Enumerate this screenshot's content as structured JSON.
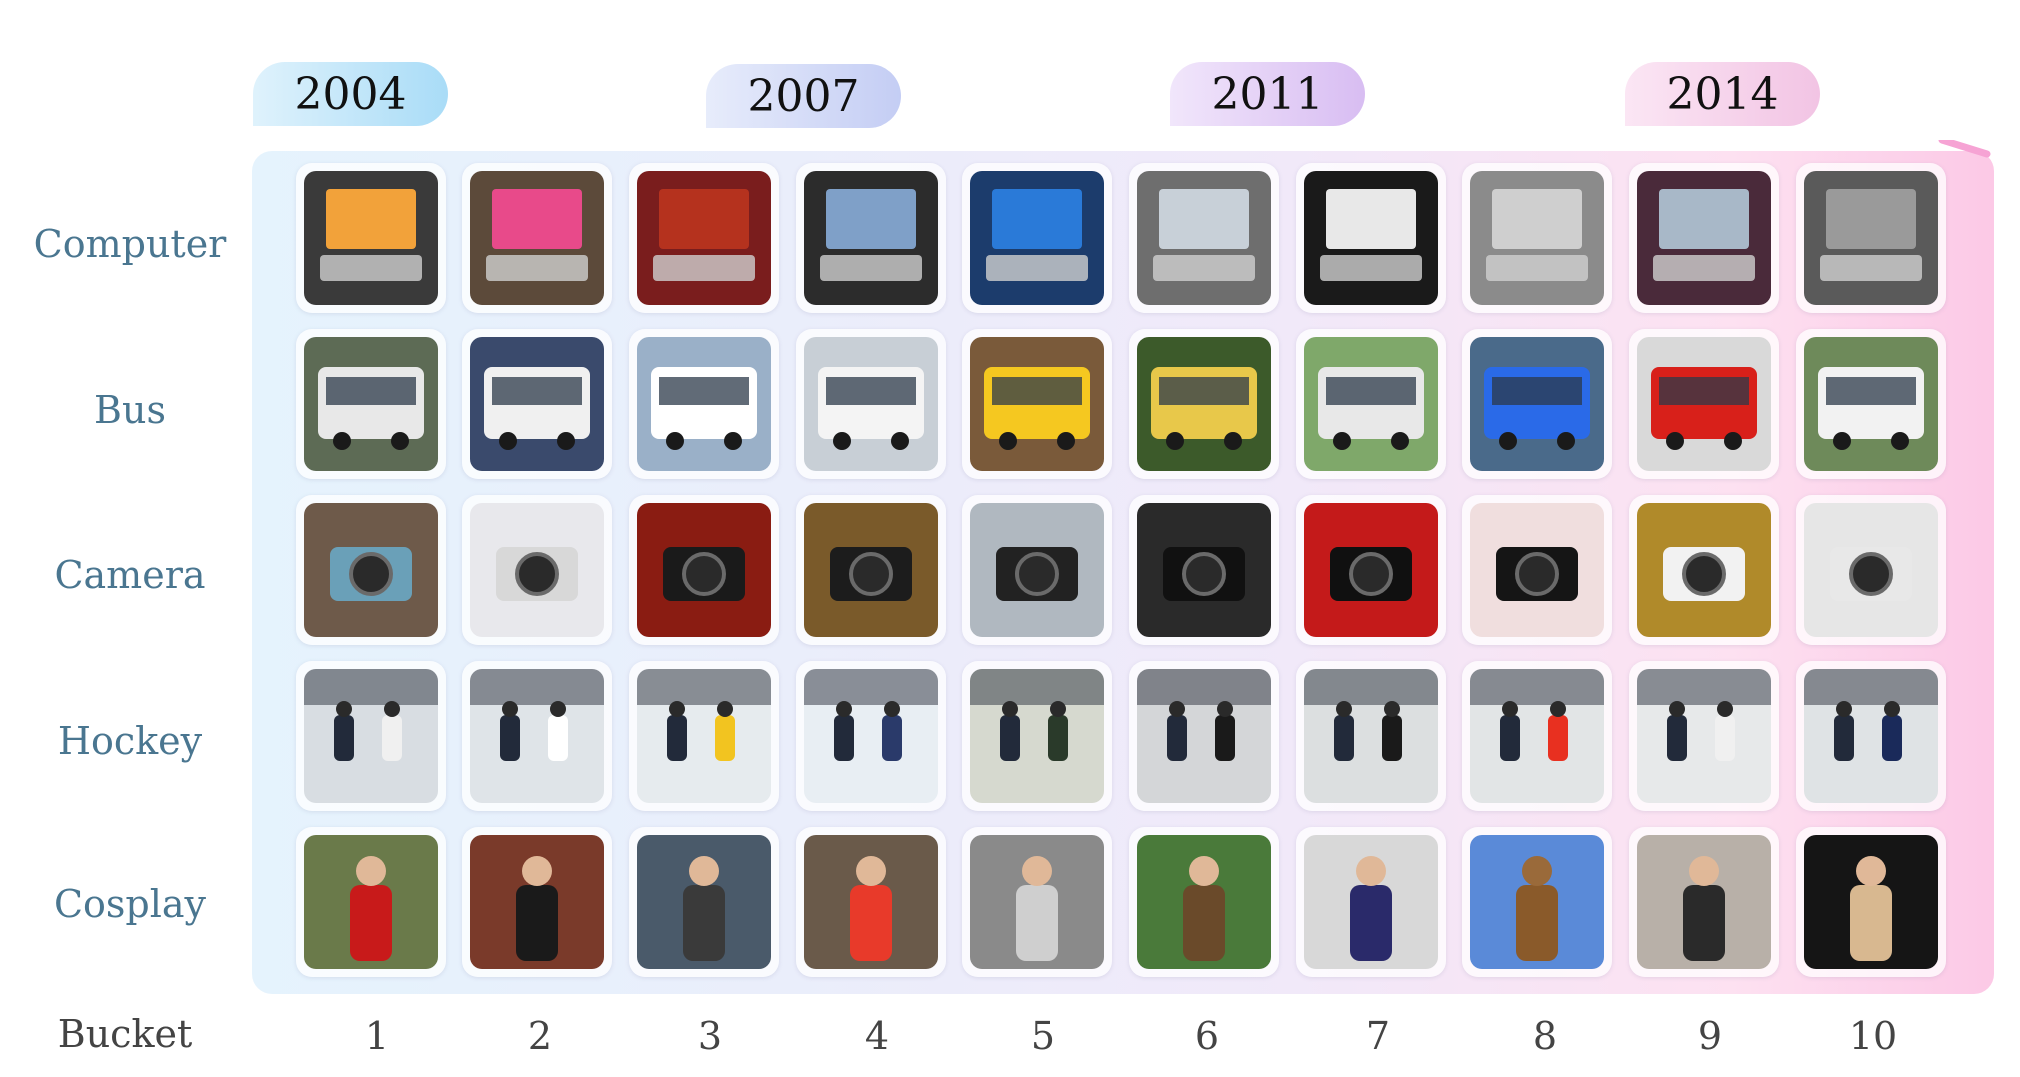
{
  "years": [
    "2004",
    "2007",
    "2011",
    "2014"
  ],
  "rows": [
    "Computer",
    "Bus",
    "Camera",
    "Hockey",
    "Cosplay"
  ],
  "bucket_title": "Bucket",
  "buckets": [
    "1",
    "2",
    "3",
    "4",
    "5",
    "6",
    "7",
    "8",
    "9",
    "10"
  ],
  "colors": {
    "label_text": "#4a7690",
    "year_pill_start": "#c7e8fb",
    "year_pill_end": "#f6d4ea",
    "panel_left": "#e5f3fd",
    "panel_right": "#fcc9e6",
    "arrow_left": "#a9d8f5",
    "arrow_right": "#f6a3d4"
  },
  "thumbnails": {
    "Computer": [
      "laptop-sunflower",
      "desktop-pc",
      "laptops-store",
      "person-at-pc",
      "laptop-windows",
      "two-laptops",
      "white-laptop",
      "macbook",
      "laptop-open",
      "typing-keyboard"
    ],
    "Bus": [
      "bus-top-view",
      "city-bus",
      "double-decker-white",
      "city-bus-front",
      "yellow-bus",
      "school-bus",
      "coach-bus",
      "blue-bus",
      "red-double-decker",
      "white-bus"
    ],
    "Camera": [
      "person-with-camera",
      "vintage-camera",
      "compact-camera",
      "slr-camera",
      "photographer",
      "canon-dslr",
      "nikon-dslr",
      "black-dslr",
      "compact-white-camera",
      "rangefinder-camera"
    ],
    "Hockey": [
      "hockey-players",
      "hockey-skater",
      "hockey-game",
      "hockey-rink",
      "hockey-goalie",
      "hockey-match",
      "hockey-net",
      "hockey-red-team",
      "hockey-players-white",
      "hockey-rink-wide"
    ],
    "Cosplay": [
      "star-wars-cosplay",
      "cosplayer-wall",
      "cosplay-robot",
      "mario-peach",
      "cosplay-crowd",
      "fur-costume",
      "cosplay-street",
      "bear-mascot",
      "cosplay-hall",
      "cosplay-portrait"
    ]
  }
}
